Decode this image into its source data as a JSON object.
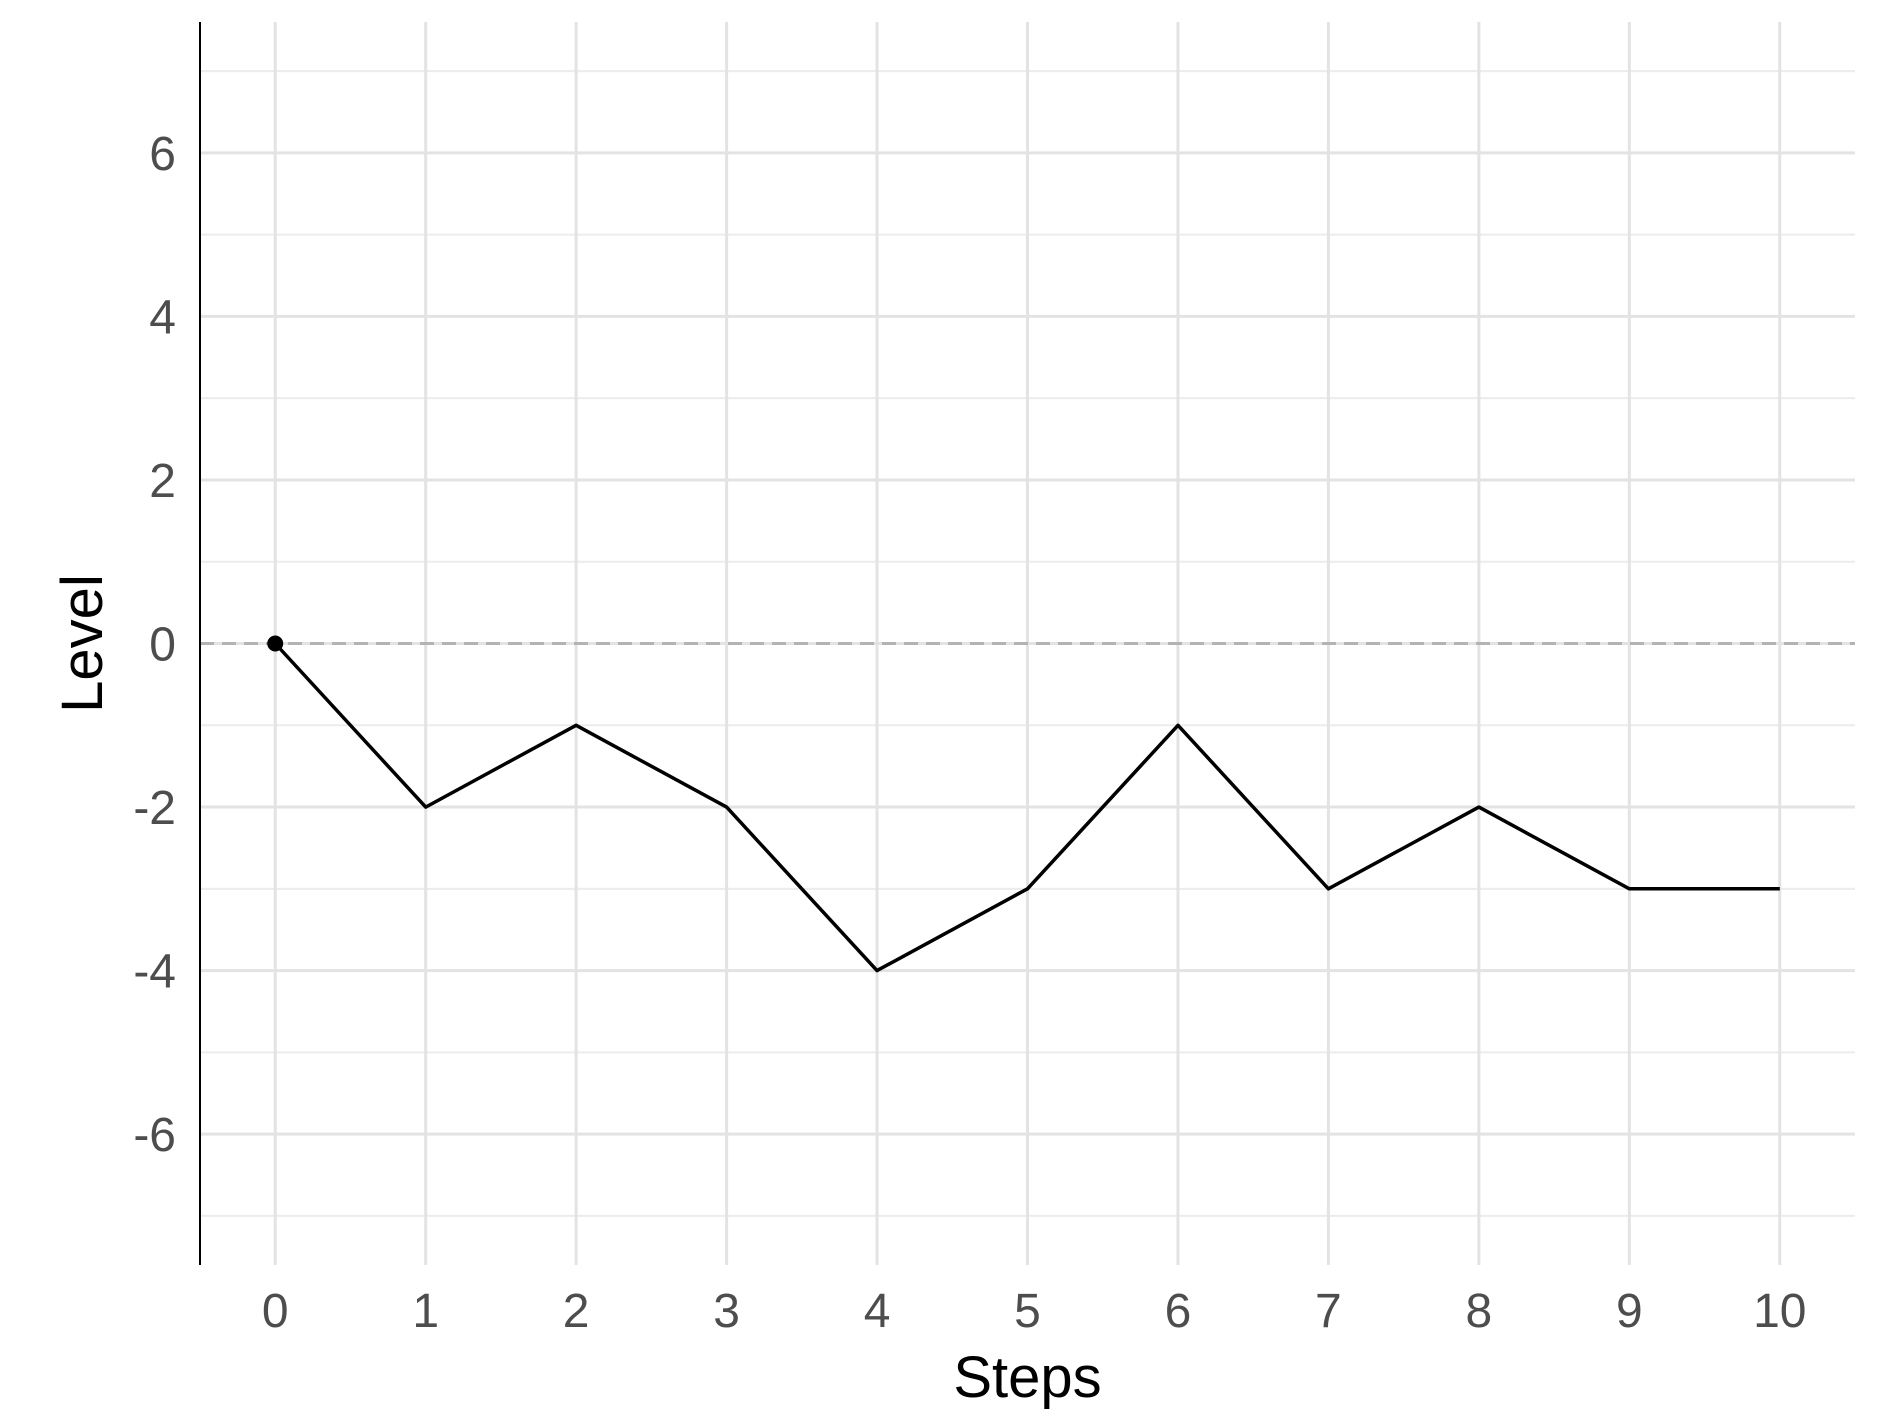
{
  "chart_data": {
    "type": "line",
    "xlabel": "Steps",
    "ylabel": "Level",
    "x": [
      0,
      1,
      2,
      3,
      4,
      5,
      6,
      7,
      8,
      9,
      10
    ],
    "series": [
      {
        "values": [
          0,
          -2,
          -1,
          -2,
          -4,
          -3,
          -1,
          -3,
          -2,
          -3,
          -3
        ]
      }
    ],
    "xlim": [
      -0.5,
      10.5
    ],
    "ylim": [
      -7.6,
      7.6
    ],
    "xticks": [
      0,
      1,
      2,
      3,
      4,
      5,
      6,
      7,
      8,
      9,
      10
    ],
    "yticks": [
      -6,
      -4,
      -2,
      0,
      2,
      4,
      6
    ],
    "reference_line": {
      "y": 0,
      "style": "dashed",
      "color": "#b3b3b3"
    },
    "start_marker": {
      "x": 0,
      "y": 0
    },
    "grid": true,
    "colors": {
      "line": "#000000",
      "grid": "#e3e3e3",
      "tick_text": "#4d4d4d"
    }
  }
}
